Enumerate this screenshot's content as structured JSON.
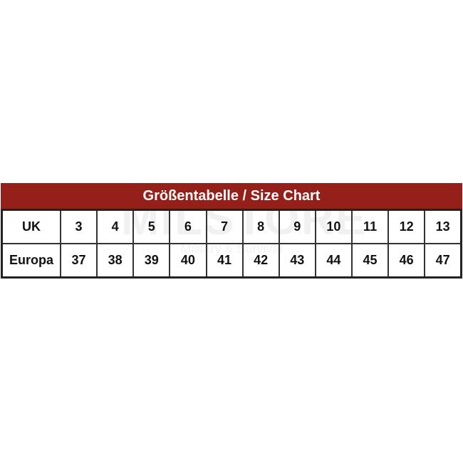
{
  "title": "Größentabelle / Size Chart",
  "watermark": {
    "brand": "MILSTORE",
    "tagline": "Military & Survival"
  },
  "colors": {
    "header": "#952019"
  },
  "rows": [
    {
      "label": "UK",
      "values": [
        "3",
        "4",
        "5",
        "6",
        "7",
        "8",
        "9",
        "10",
        "11",
        "12",
        "13"
      ]
    },
    {
      "label": "Europa",
      "values": [
        "37",
        "38",
        "39",
        "40",
        "41",
        "42",
        "43",
        "44",
        "45",
        "46",
        "47"
      ]
    }
  ]
}
